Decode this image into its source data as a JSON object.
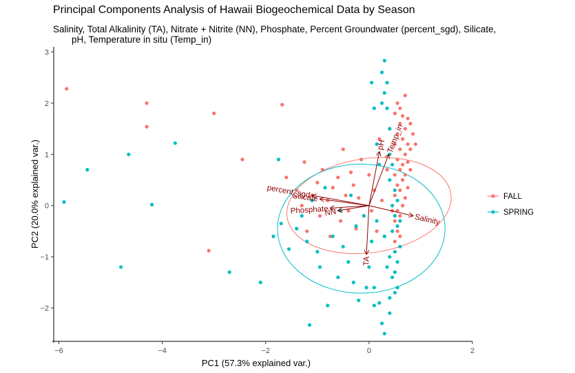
{
  "chart_data": {
    "type": "scatter",
    "title": "Principal Components Analysis of Hawaii Biogeochemical Data by Season",
    "subtitle_line1": "Salinity, Total Alkalinity (TA), Nitrate + Nitrite (NN), Phosphate, Percent Groundwater (percent_sgd), Silicate,",
    "subtitle_line2": "pH, Temperature in situ (Temp_in)",
    "xlabel": "PC1 (57.3% explained var.)",
    "ylabel": "PC2 (20.0% explained var.)",
    "xlim": [
      -6.1,
      2.0
    ],
    "ylim": [
      -2.65,
      3.1
    ],
    "xticks": [
      -6,
      -4,
      -2,
      0,
      2
    ],
    "yticks": [
      -2,
      -1,
      0,
      1,
      2,
      3
    ],
    "grid": false,
    "legend": {
      "placement": "right"
    },
    "colors": {
      "FALL": "#F8766D",
      "SPRING": "#00BFC4",
      "arrow": "#8B0000"
    },
    "ellipses": [
      {
        "series": "FALL",
        "center": [
          0,
          0
        ],
        "rx": 1.6,
        "ry": 0.92,
        "angle": 8
      },
      {
        "series": "SPRING",
        "center": [
          -0.15,
          -0.45
        ],
        "rx": 1.62,
        "ry": 1.26,
        "angle": 0
      }
    ],
    "loadings": [
      {
        "label": "pH",
        "x": 0.2,
        "y": 1.05
      },
      {
        "label": "Temp_in",
        "x": 0.38,
        "y": 1.0
      },
      {
        "label": "Salinity",
        "x": 0.85,
        "y": -0.2
      },
      {
        "label": "TA",
        "x": -0.05,
        "y": -0.95
      },
      {
        "label": "percent_sgd",
        "x": -1.1,
        "y": 0.2
      },
      {
        "label": "Silicate",
        "x": -0.95,
        "y": 0.13
      },
      {
        "label": "Phosphate",
        "x": -0.75,
        "y": -0.05
      },
      {
        "label": "NN",
        "x": -0.6,
        "y": -0.1
      }
    ],
    "series": [
      {
        "name": "FALL",
        "points": [
          [
            -5.85,
            2.28
          ],
          [
            -4.3,
            2.0
          ],
          [
            -4.3,
            1.54
          ],
          [
            -3.0,
            1.8
          ],
          [
            -1.68,
            1.97
          ],
          [
            -2.45,
            0.9
          ],
          [
            -3.1,
            -0.88
          ],
          [
            -1.6,
            0.55
          ],
          [
            -1.4,
            0.3
          ],
          [
            -1.3,
            0.0
          ],
          [
            -1.25,
            0.85
          ],
          [
            -1.2,
            -0.5
          ],
          [
            -1.1,
            0.2
          ],
          [
            -1.0,
            0.45
          ],
          [
            -0.95,
            -0.2
          ],
          [
            -0.9,
            0.7
          ],
          [
            -0.8,
            0.1
          ],
          [
            -0.75,
            -0.6
          ],
          [
            -0.7,
            0.35
          ],
          [
            -0.6,
            0.55
          ],
          [
            -0.55,
            -0.3
          ],
          [
            -0.5,
            1.1
          ],
          [
            -0.45,
            0.2
          ],
          [
            -0.4,
            -0.1
          ],
          [
            -0.35,
            0.65
          ],
          [
            -0.3,
            0.4
          ],
          [
            -0.25,
            -0.45
          ],
          [
            -0.2,
            0.15
          ],
          [
            -0.15,
            0.9
          ],
          [
            -0.1,
            -0.2
          ],
          [
            0.0,
            0.6
          ],
          [
            0.05,
            -0.1
          ],
          [
            0.1,
            0.3
          ],
          [
            0.15,
            -0.5
          ],
          [
            0.2,
            1.3
          ],
          [
            0.25,
            0.1
          ],
          [
            0.3,
            -0.6
          ],
          [
            0.35,
            0.7
          ],
          [
            0.4,
            1.5
          ],
          [
            0.45,
            -0.1
          ],
          [
            0.5,
            1.8
          ],
          [
            0.5,
            1.2
          ],
          [
            0.5,
            0.6
          ],
          [
            0.5,
            0.2
          ],
          [
            0.5,
            -0.3
          ],
          [
            0.5,
            -0.7
          ],
          [
            0.55,
            2.0
          ],
          [
            0.55,
            1.4
          ],
          [
            0.55,
            0.9
          ],
          [
            0.55,
            0.4
          ],
          [
            0.55,
            -0.1
          ],
          [
            0.55,
            -0.5
          ],
          [
            0.6,
            1.9
          ],
          [
            0.6,
            1.6
          ],
          [
            0.6,
            1.1
          ],
          [
            0.6,
            0.7
          ],
          [
            0.6,
            0.3
          ],
          [
            0.6,
            -0.2
          ],
          [
            0.6,
            -0.6
          ],
          [
            0.65,
            1.75
          ],
          [
            0.65,
            1.3
          ],
          [
            0.65,
            0.8
          ],
          [
            0.65,
            0.5
          ],
          [
            0.65,
            0.0
          ],
          [
            0.7,
            2.15
          ],
          [
            0.7,
            1.5
          ],
          [
            0.7,
            1.0
          ],
          [
            0.7,
            0.6
          ],
          [
            0.7,
            0.15
          ],
          [
            0.75,
            1.7
          ],
          [
            0.75,
            1.2
          ],
          [
            0.75,
            0.85
          ],
          [
            0.75,
            0.35
          ],
          [
            0.8,
            1.6
          ],
          [
            0.8,
            1.1
          ],
          [
            0.8,
            0.7
          ],
          [
            0.85,
            1.4
          ],
          [
            0.9,
            1.2
          ]
        ]
      },
      {
        "name": "SPRING",
        "points": [
          [
            -5.9,
            0.07
          ],
          [
            -5.45,
            0.7
          ],
          [
            -4.65,
            1.0
          ],
          [
            -4.8,
            -1.2
          ],
          [
            -4.2,
            0.02
          ],
          [
            -3.75,
            1.22
          ],
          [
            -2.7,
            -1.3
          ],
          [
            -2.1,
            -1.5
          ],
          [
            -1.75,
            0.9
          ],
          [
            -1.85,
            -0.6
          ],
          [
            -1.7,
            -0.35
          ],
          [
            -1.55,
            -0.85
          ],
          [
            -1.4,
            -0.45
          ],
          [
            -1.3,
            -0.2
          ],
          [
            -1.2,
            -0.7
          ],
          [
            -1.1,
            0.1
          ],
          [
            -1.0,
            -0.9
          ],
          [
            -0.95,
            -1.2
          ],
          [
            -0.85,
            0.35
          ],
          [
            -0.8,
            -1.95
          ],
          [
            -0.7,
            -0.6
          ],
          [
            -0.6,
            -1.4
          ],
          [
            -0.55,
            -0.1
          ],
          [
            -0.5,
            -0.8
          ],
          [
            -0.4,
            -1.1
          ],
          [
            -0.35,
            0.2
          ],
          [
            -0.3,
            -1.5
          ],
          [
            -0.25,
            -0.4
          ],
          [
            -0.2,
            -1.85
          ],
          [
            -0.1,
            -0.2
          ],
          [
            0.0,
            -1.2
          ],
          [
            0.05,
            -0.7
          ],
          [
            0.1,
            -1.6
          ],
          [
            0.15,
            -0.3
          ],
          [
            0.2,
            -1.9
          ],
          [
            -1.15,
            -2.33
          ],
          [
            -0.05,
            -1.6
          ],
          [
            0.25,
            2.6
          ],
          [
            0.25,
            2.0
          ],
          [
            0.3,
            2.2
          ],
          [
            0.3,
            2.83
          ],
          [
            0.35,
            1.9
          ],
          [
            0.35,
            2.4
          ],
          [
            0.4,
            1.5
          ],
          [
            0.4,
            1.0
          ],
          [
            0.4,
            0.5
          ],
          [
            0.4,
            -1.0
          ],
          [
            0.4,
            -1.8
          ],
          [
            0.45,
            0.8
          ],
          [
            0.45,
            0.0
          ],
          [
            0.45,
            -0.5
          ],
          [
            0.45,
            -1.4
          ],
          [
            0.5,
            0.3
          ],
          [
            0.5,
            -0.2
          ],
          [
            0.5,
            -0.9
          ],
          [
            0.5,
            -1.3
          ],
          [
            0.5,
            -1.7
          ],
          [
            0.55,
            0.1
          ],
          [
            0.55,
            -0.4
          ],
          [
            0.55,
            -1.1
          ],
          [
            0.55,
            -1.6
          ],
          [
            0.4,
            -2.1
          ],
          [
            0.3,
            -2.5
          ],
          [
            0.25,
            -2.3
          ],
          [
            0.1,
            -1.95
          ],
          [
            0.6,
            -0.3
          ],
          [
            0.6,
            -0.8
          ],
          [
            0.35,
            -1.2
          ],
          [
            0.3,
            -0.6
          ],
          [
            0.2,
            0.8
          ],
          [
            0.15,
            1.2
          ],
          [
            0.1,
            1.9
          ],
          [
            0.05,
            2.4
          ]
        ]
      }
    ]
  }
}
